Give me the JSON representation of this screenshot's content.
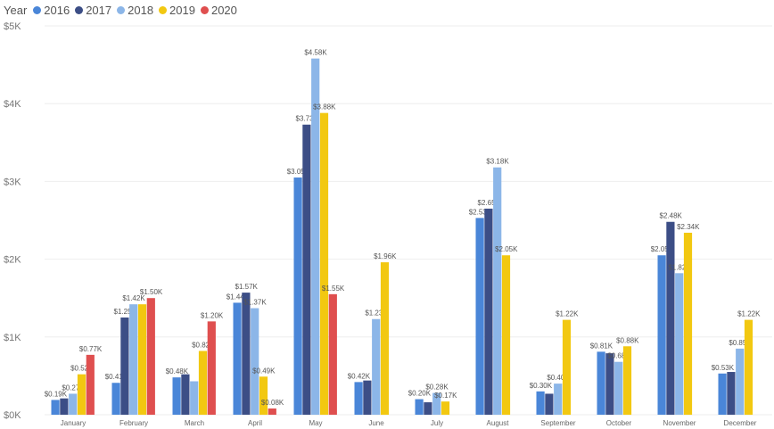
{
  "chart_data": {
    "type": "bar",
    "legend_title": "Year",
    "legend_position": "top-left",
    "categories": [
      "January",
      "February",
      "March",
      "April",
      "May",
      "June",
      "July",
      "August",
      "September",
      "October",
      "November",
      "December"
    ],
    "series": [
      {
        "name": "2016",
        "color": "#4a86d8",
        "values": [
          190,
          410,
          480,
          1440,
          3050,
          420,
          200,
          2530,
          300,
          810,
          2050,
          530
        ],
        "labels": [
          "$0.19K",
          "$0.41K",
          "$0.48K",
          "$1.44K",
          "$3.05K",
          "$0.42K",
          "$0.20K",
          "$2.53K",
          "$0.30K",
          "$0.81K",
          "$2.05K",
          "$0.53K"
        ]
      },
      {
        "name": "2017",
        "color": "#3c4e86",
        "values": [
          210,
          1250,
          520,
          1570,
          3730,
          440,
          160,
          2650,
          270,
          790,
          2480,
          550
        ],
        "labels": [
          "",
          "$1.25K",
          "",
          "$1.57K",
          "$3.73K",
          "",
          "",
          "$2.65K",
          "",
          "",
          "$2.48K",
          ""
        ]
      },
      {
        "name": "2018",
        "color": "#8cb6e8",
        "values": [
          270,
          1420,
          430,
          1370,
          4580,
          1230,
          280,
          3180,
          400,
          680,
          1820,
          850
        ],
        "labels": [
          "$0.27K",
          "$1.42K",
          "",
          "$1.37K",
          "$4.58K",
          "$1.23K",
          "$0.28K",
          "$3.18K",
          "$0.40K",
          "$0.68K",
          "$1.82K",
          "$0.85K"
        ]
      },
      {
        "name": "2019",
        "color": "#f2c811",
        "values": [
          520,
          1420,
          820,
          490,
          3880,
          1960,
          170,
          2050,
          1220,
          880,
          2340,
          1220
        ],
        "labels": [
          "$0.52K",
          "",
          "$0.82K",
          "$0.49K",
          "$3.88K",
          "$1.96K",
          "$0.17K",
          "$2.05K",
          "$1.22K",
          "$0.88K",
          "$2.34K",
          "$1.22K"
        ]
      },
      {
        "name": "2020",
        "color": "#df4f4f",
        "values": [
          770,
          1500,
          1200,
          80,
          1550,
          null,
          null,
          null,
          null,
          null,
          null,
          null
        ],
        "labels": [
          "$0.77K",
          "$1.50K",
          "$1.20K",
          "$0.08K",
          "$1.55K",
          "",
          "",
          "",
          "",
          "",
          "",
          ""
        ]
      }
    ],
    "ylim": [
      0,
      5000
    ],
    "yticks": [
      0,
      1000,
      2000,
      3000,
      4000,
      5000
    ],
    "ytick_labels": [
      "$0K",
      "$1K",
      "$2K",
      "$3K",
      "$4K",
      "$5K"
    ],
    "grid": true,
    "xlabel": "",
    "ylabel": ""
  }
}
